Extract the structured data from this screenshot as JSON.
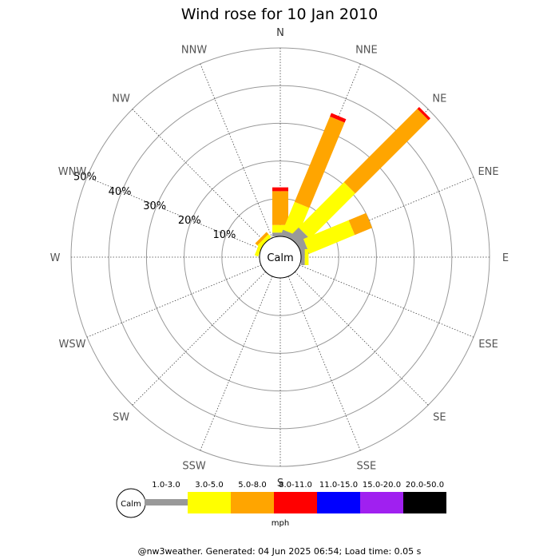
{
  "chart_data": {
    "type": "wind-rose",
    "title": "Wind rose for 10 Jan 2010",
    "directions": [
      "N",
      "NNE",
      "NE",
      "ENE",
      "E",
      "ESE",
      "SE",
      "SSE",
      "S",
      "SSW",
      "SW",
      "WSW",
      "W",
      "WNW",
      "NW",
      "NNW"
    ],
    "ring_labels": [
      "10%",
      "20%",
      "30%",
      "40%",
      "50%"
    ],
    "rings": [
      10,
      20,
      30,
      40,
      50
    ],
    "radial_max": 50,
    "calm_label": "Calm",
    "speed_bins": [
      {
        "label": "1.0-3.0",
        "color": "#999999"
      },
      {
        "label": "3.0-5.0",
        "color": "#ffff00"
      },
      {
        "label": "5.0-8.0",
        "color": "#ffa500"
      },
      {
        "label": "8.0-11.0",
        "color": "#ff0000"
      },
      {
        "label": "11.0-15.0",
        "color": "#0000ff"
      },
      {
        "label": "15.0-20.0",
        "color": "#a020f0"
      },
      {
        "label": "20.0-50.0",
        "color": "#000000"
      }
    ],
    "units": "mph",
    "series": [
      {
        "direction": "N",
        "values": [
          1.0,
          2.0,
          9.0,
          1.0,
          0,
          0,
          0
        ]
      },
      {
        "direction": "NNE",
        "values": [
          1.5,
          8.0,
          24.5,
          1.0,
          0,
          0,
          0
        ]
      },
      {
        "direction": "NE",
        "values": [
          3.5,
          17.0,
          27.5,
          0.7,
          0,
          0,
          0
        ]
      },
      {
        "direction": "ENE",
        "values": [
          2.0,
          13.0,
          5.0,
          0,
          0,
          0,
          0
        ]
      },
      {
        "direction": "E",
        "values": [
          1.0,
          1.0,
          0,
          0,
          0,
          0,
          0
        ]
      },
      {
        "direction": "ESE",
        "values": [
          0,
          0,
          0,
          0,
          0,
          0,
          0
        ]
      },
      {
        "direction": "SE",
        "values": [
          0,
          0,
          0,
          0,
          0,
          0,
          0
        ]
      },
      {
        "direction": "SSE",
        "values": [
          0,
          0,
          0,
          0,
          0,
          0,
          0
        ]
      },
      {
        "direction": "S",
        "values": [
          0,
          0,
          0,
          0,
          0,
          0,
          0
        ]
      },
      {
        "direction": "SSW",
        "values": [
          0,
          0,
          0,
          0,
          0,
          0,
          0
        ]
      },
      {
        "direction": "SW",
        "values": [
          0,
          0,
          0,
          0,
          0,
          0,
          0
        ]
      },
      {
        "direction": "WSW",
        "values": [
          0,
          0,
          0,
          0,
          0,
          0,
          0
        ]
      },
      {
        "direction": "W",
        "values": [
          0,
          0,
          0,
          0,
          0,
          0,
          0
        ]
      },
      {
        "direction": "WNW",
        "values": [
          0,
          1.0,
          0,
          0,
          0,
          0,
          0
        ]
      },
      {
        "direction": "NW",
        "values": [
          0,
          1.0,
          0.8,
          0,
          0,
          0,
          0
        ]
      },
      {
        "direction": "NNW",
        "values": [
          0,
          0,
          0,
          0,
          0,
          0,
          0
        ]
      }
    ]
  },
  "footer": "@nw3weather. Generated: 04 Jun 2025 06:54; Load time: 0.05 s"
}
